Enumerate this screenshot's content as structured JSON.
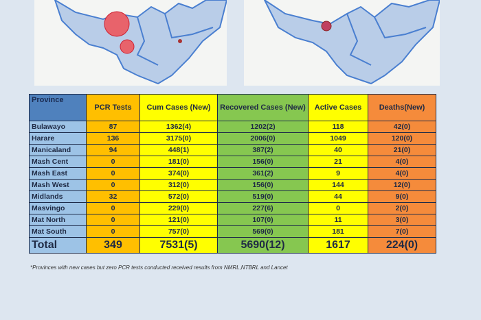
{
  "table": {
    "header": [
      "Province",
      "PCR Tests",
      "Cum Cases (New)",
      "Recovered Cases (New)",
      "Active Cases",
      "Deaths(New)"
    ],
    "rows": [
      [
        "Bulawayo",
        "87",
        "1362(4)",
        "1202(2)",
        "118",
        "42(0)"
      ],
      [
        "Harare",
        "136",
        "3175(0)",
        "2006(0)",
        "1049",
        "120(0)"
      ],
      [
        "Manicaland",
        "94",
        "448(1)",
        "387(2)",
        "40",
        "21(0)"
      ],
      [
        "Mash Cent",
        "0",
        "181(0)",
        "156(0)",
        "21",
        "4(0)"
      ],
      [
        "Mash East",
        "0",
        "374(0)",
        "361(2)",
        "9",
        "4(0)"
      ],
      [
        "Mash West",
        "0",
        "312(0)",
        "156(0)",
        "144",
        "12(0)"
      ],
      [
        "Midlands",
        "32",
        "572(0)",
        "519(0)",
        "44",
        "9(0)"
      ],
      [
        "Masvingo",
        "0",
        "229(0)",
        "227(6)",
        "0",
        "2(0)"
      ],
      [
        "Mat North",
        "0",
        "121(0)",
        "107(0)",
        "11",
        "3(0)"
      ],
      [
        "Mat South",
        "0",
        "757(0)",
        "569(0)",
        "181",
        "7(0)"
      ]
    ],
    "total": [
      "Total",
      "349",
      "7531(5)",
      "5690(12)",
      "1617",
      "224(0)"
    ]
  },
  "footnote": "*Provinces with new cases but zero PCR tests conducted received results from NMRL,NTBRL and Lancet"
}
